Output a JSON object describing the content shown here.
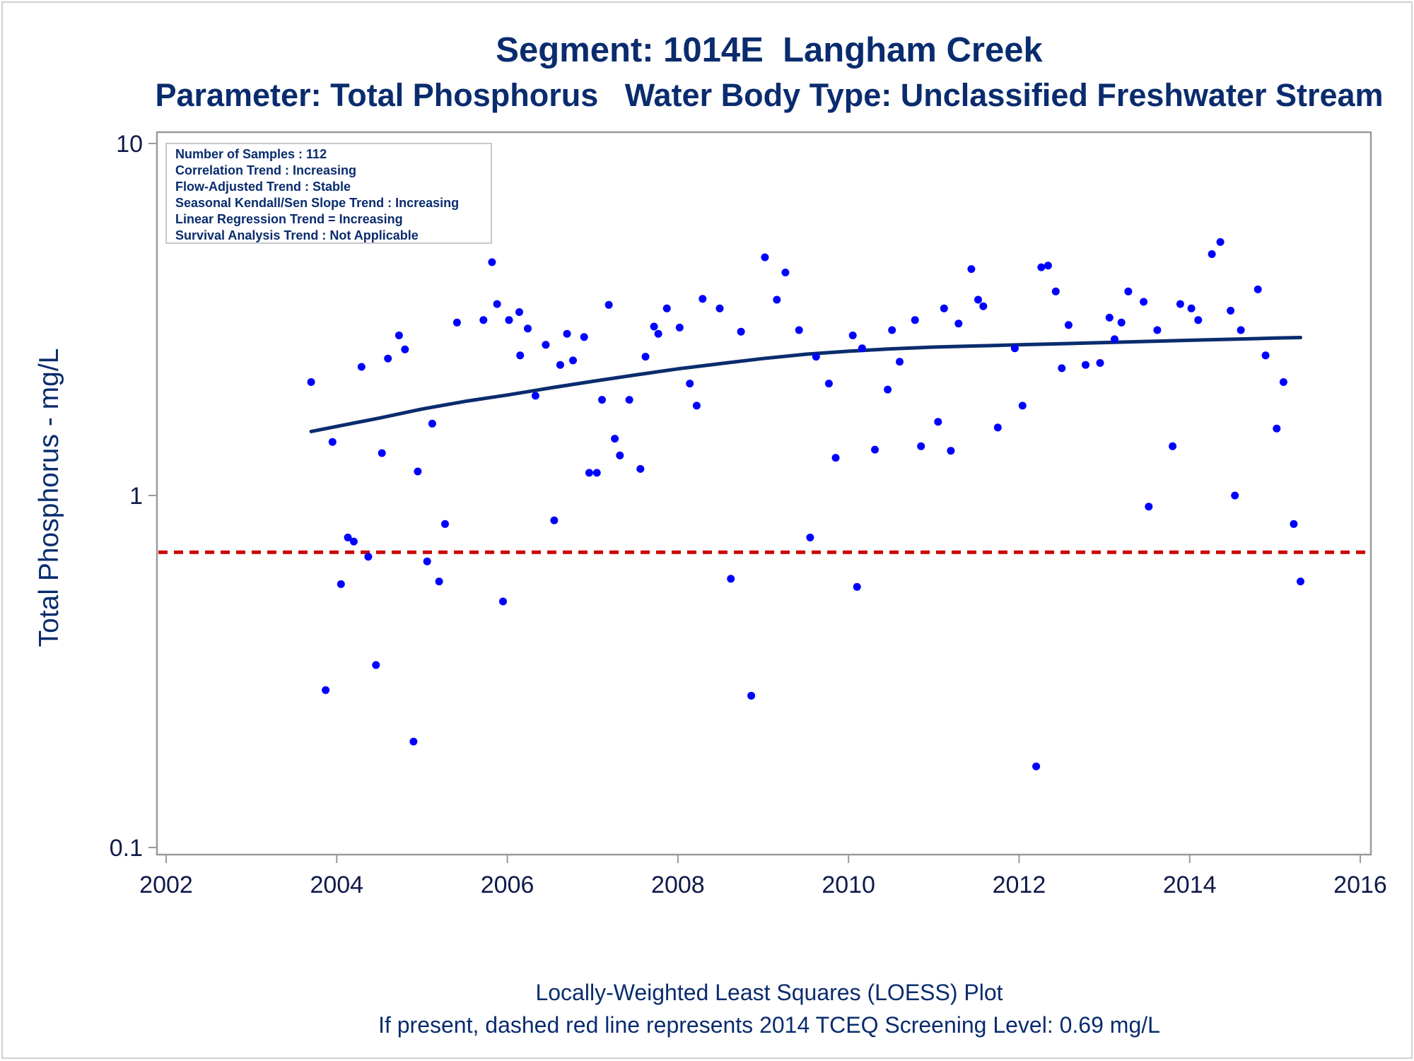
{
  "colors": {
    "text": "#0a2c6e",
    "points": "#0000ff",
    "fit_line": "#0a2c6e",
    "screening_line": "#cc0000",
    "frame": "#9a9a9a"
  },
  "chart_data": {
    "type": "scatter",
    "title": "Segment: 1014E  Langham Creek",
    "subtitle": "Parameter: Total Phosphorus   Water Body Type: Unclassified Freshwater Stream",
    "ylabel": "Total Phosphorus - mg/L",
    "xlabel": "",
    "footnotes": [
      "Locally-Weighted Least Squares (LOESS) Plot",
      "If present, dashed red line represents 2014 TCEQ Screening Level: 0.69 mg/L"
    ],
    "stats_box": [
      "Number of Samples : 112",
      "Correlation Trend : Increasing",
      "Flow-Adjusted Trend : Stable",
      "Seasonal Kendall/Sen Slope Trend : Increasing",
      "Linear Regression Trend = Increasing",
      "Survival Analysis Trend : Not Applicable"
    ],
    "y_scale": "log",
    "xlim": [
      2002,
      2016
    ],
    "ylim": [
      0.1,
      10
    ],
    "x_ticks": [
      "2002",
      "2004",
      "2006",
      "2008",
      "2010",
      "2012",
      "2014",
      "2016"
    ],
    "y_ticks": [
      "0.1",
      "1",
      "10"
    ],
    "reference_line": {
      "value": 0.69,
      "style": "dashed"
    },
    "grid": false,
    "series": [
      {
        "type": "scatter",
        "points": [
          [
            2003.7,
            2.1
          ],
          [
            2003.87,
            0.28
          ],
          [
            2003.95,
            1.42
          ],
          [
            2004.05,
            0.56
          ],
          [
            2004.13,
            0.76
          ],
          [
            2004.2,
            0.74
          ],
          [
            2004.29,
            2.32
          ],
          [
            2004.37,
            0.67
          ],
          [
            2004.46,
            0.33
          ],
          [
            2004.53,
            1.32
          ],
          [
            2004.6,
            2.45
          ],
          [
            2004.73,
            2.85
          ],
          [
            2004.8,
            2.6
          ],
          [
            2004.9,
            0.2
          ],
          [
            2004.95,
            1.17
          ],
          [
            2005.06,
            0.65
          ],
          [
            2005.12,
            1.6
          ],
          [
            2005.2,
            0.57
          ],
          [
            2005.27,
            0.83
          ],
          [
            2005.41,
            3.1
          ],
          [
            2005.72,
            3.15
          ],
          [
            2005.82,
            4.6
          ],
          [
            2005.88,
            3.5
          ],
          [
            2005.95,
            0.5
          ],
          [
            2006.02,
            3.15
          ],
          [
            2006.14,
            3.32
          ],
          [
            2006.15,
            2.5
          ],
          [
            2006.24,
            2.98
          ],
          [
            2006.33,
            1.92
          ],
          [
            2006.45,
            2.68
          ],
          [
            2006.55,
            0.85
          ],
          [
            2006.62,
            2.35
          ],
          [
            2006.7,
            2.88
          ],
          [
            2006.77,
            2.42
          ],
          [
            2006.9,
            2.82
          ],
          [
            2006.96,
            1.16
          ],
          [
            2007.05,
            1.16
          ],
          [
            2007.11,
            1.87
          ],
          [
            2007.19,
            3.48
          ],
          [
            2007.26,
            1.45
          ],
          [
            2007.32,
            1.3
          ],
          [
            2007.43,
            1.87
          ],
          [
            2007.56,
            1.19
          ],
          [
            2007.62,
            2.48
          ],
          [
            2007.72,
            3.02
          ],
          [
            2007.77,
            2.88
          ],
          [
            2007.87,
            3.4
          ],
          [
            2008.02,
            3.0
          ],
          [
            2008.14,
            2.08
          ],
          [
            2008.22,
            1.8
          ],
          [
            2008.29,
            3.62
          ],
          [
            2008.49,
            3.4
          ],
          [
            2008.62,
            0.58
          ],
          [
            2008.74,
            2.92
          ],
          [
            2008.86,
            0.27
          ],
          [
            2009.02,
            4.75
          ],
          [
            2009.16,
            3.6
          ],
          [
            2009.26,
            4.3
          ],
          [
            2009.42,
            2.95
          ],
          [
            2009.55,
            0.76
          ],
          [
            2009.62,
            2.48
          ],
          [
            2009.77,
            2.08
          ],
          [
            2009.85,
            1.28
          ],
          [
            2010.05,
            2.85
          ],
          [
            2010.1,
            0.55
          ],
          [
            2010.16,
            2.62
          ],
          [
            2010.31,
            1.35
          ],
          [
            2010.46,
            2.0
          ],
          [
            2010.51,
            2.95
          ],
          [
            2010.6,
            2.4
          ],
          [
            2010.78,
            3.15
          ],
          [
            2010.85,
            1.38
          ],
          [
            2011.05,
            1.62
          ],
          [
            2011.12,
            3.4
          ],
          [
            2011.2,
            1.34
          ],
          [
            2011.29,
            3.08
          ],
          [
            2011.44,
            4.4
          ],
          [
            2011.52,
            3.6
          ],
          [
            2011.58,
            3.45
          ],
          [
            2011.75,
            1.56
          ],
          [
            2011.95,
            2.62
          ],
          [
            2012.04,
            1.8
          ],
          [
            2012.2,
            0.17
          ],
          [
            2012.26,
            4.45
          ],
          [
            2012.34,
            4.5
          ],
          [
            2012.43,
            3.8
          ],
          [
            2012.5,
            2.3
          ],
          [
            2012.58,
            3.05
          ],
          [
            2012.78,
            2.35
          ],
          [
            2012.95,
            2.38
          ],
          [
            2013.06,
            3.2
          ],
          [
            2013.12,
            2.78
          ],
          [
            2013.2,
            3.1
          ],
          [
            2013.28,
            3.8
          ],
          [
            2013.46,
            3.55
          ],
          [
            2013.52,
            0.93
          ],
          [
            2013.62,
            2.95
          ],
          [
            2013.8,
            1.38
          ],
          [
            2013.89,
            3.5
          ],
          [
            2014.02,
            3.4
          ],
          [
            2014.1,
            3.15
          ],
          [
            2014.26,
            4.85
          ],
          [
            2014.36,
            5.25
          ],
          [
            2014.53,
            1.0
          ],
          [
            2014.6,
            2.95
          ],
          [
            2014.48,
            3.35
          ],
          [
            2014.8,
            3.85
          ],
          [
            2014.89,
            2.5
          ],
          [
            2015.02,
            1.55
          ],
          [
            2015.1,
            2.1
          ],
          [
            2015.22,
            0.83
          ],
          [
            2015.3,
            0.57
          ]
        ]
      },
      {
        "type": "line",
        "points": [
          [
            2003.7,
            1.52
          ],
          [
            2004.5,
            1.66
          ],
          [
            2005.0,
            1.76
          ],
          [
            2005.5,
            1.85
          ],
          [
            2006.0,
            1.93
          ],
          [
            2006.5,
            2.02
          ],
          [
            2007.0,
            2.11
          ],
          [
            2007.5,
            2.2
          ],
          [
            2008.0,
            2.29
          ],
          [
            2008.5,
            2.37
          ],
          [
            2009.0,
            2.45
          ],
          [
            2009.5,
            2.52
          ],
          [
            2010.0,
            2.57
          ],
          [
            2010.5,
            2.61
          ],
          [
            2011.0,
            2.64
          ],
          [
            2011.5,
            2.66
          ],
          [
            2012.0,
            2.68
          ],
          [
            2012.5,
            2.7
          ],
          [
            2013.0,
            2.72
          ],
          [
            2013.5,
            2.74
          ],
          [
            2014.0,
            2.76
          ],
          [
            2014.5,
            2.78
          ],
          [
            2015.0,
            2.8
          ],
          [
            2015.3,
            2.81
          ]
        ]
      }
    ]
  }
}
